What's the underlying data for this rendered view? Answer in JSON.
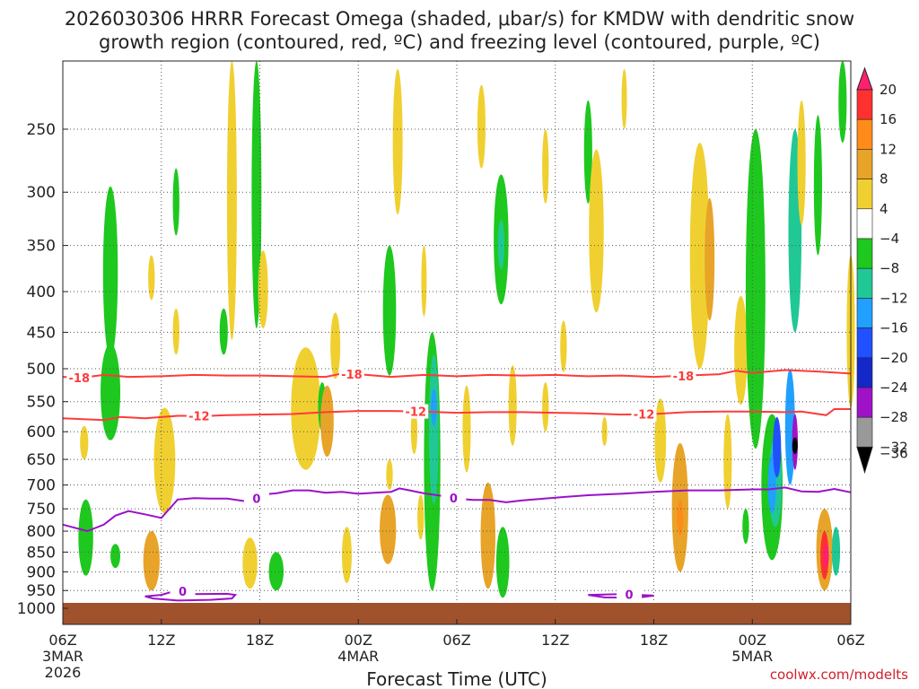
{
  "chart_data": {
    "type": "time-height contour (shaded omega with contour overlays)",
    "title_line1": "2026030306 HRRR Forecast Omega (shaded, μbar/s) for KMDW with dendritic snow",
    "title_line2": "growth region (contoured, red, ºC) and freezing level (contoured, purple, ºC)",
    "xlabel": "Forecast Time (UTC)",
    "credit": "coolwx.com/modelts",
    "x_ticks": [
      {
        "hour": 0,
        "label": "06Z",
        "sub1": "3MAR",
        "sub2": "2026"
      },
      {
        "hour": 6,
        "label": "12Z",
        "sub1": "",
        "sub2": ""
      },
      {
        "hour": 12,
        "label": "18Z",
        "sub1": "",
        "sub2": ""
      },
      {
        "hour": 18,
        "label": "00Z",
        "sub1": "4MAR",
        "sub2": ""
      },
      {
        "hour": 24,
        "label": "06Z",
        "sub1": "",
        "sub2": ""
      },
      {
        "hour": 30,
        "label": "12Z",
        "sub1": "",
        "sub2": ""
      },
      {
        "hour": 36,
        "label": "18Z",
        "sub1": "",
        "sub2": ""
      },
      {
        "hour": 42,
        "label": "00Z",
        "sub1": "5MAR",
        "sub2": ""
      },
      {
        "hour": 48,
        "label": "06Z",
        "sub1": "",
        "sub2": ""
      }
    ],
    "x_range_hours": [
      0,
      48
    ],
    "y_axis": "pressure (hPa)",
    "y_range_hpa": [
      1000,
      200
    ],
    "y_ticks": [
      250,
      300,
      350,
      400,
      450,
      500,
      550,
      600,
      650,
      700,
      750,
      800,
      850,
      900,
      950,
      1000
    ],
    "grid": true,
    "colorbar": {
      "labels": [
        "20",
        "16",
        "12",
        "8",
        "4",
        "−4",
        "−8",
        "−12",
        "−16",
        "−20",
        "−24",
        "−28",
        "−32",
        "−36"
      ],
      "colors": [
        "#ff2070",
        "#ff3030",
        "#ff8c1a",
        "#e8a428",
        "#f0d030",
        "#ffffff",
        "#1ec81e",
        "#20c896",
        "#20a0ff",
        "#2050ff",
        "#1428c8",
        "#a012c8",
        "#999999",
        "#000000"
      ]
    },
    "contours": [
      {
        "name": "dgz-minus-18",
        "label": "-18",
        "color": "#ff3a3a",
        "points": [
          [
            0,
            512
          ],
          [
            1.2,
            513
          ],
          [
            2.5,
            509
          ],
          [
            4,
            512
          ],
          [
            6,
            511
          ],
          [
            8,
            509
          ],
          [
            10,
            510
          ],
          [
            12,
            510
          ],
          [
            14,
            511
          ],
          [
            16,
            512
          ],
          [
            17,
            507
          ],
          [
            18,
            508
          ],
          [
            20,
            512
          ],
          [
            22,
            509
          ],
          [
            24,
            511
          ],
          [
            26,
            509
          ],
          [
            28,
            510
          ],
          [
            30,
            509
          ],
          [
            32,
            511
          ],
          [
            34,
            510
          ],
          [
            36,
            512
          ],
          [
            38,
            510
          ],
          [
            40,
            508
          ],
          [
            41,
            503
          ],
          [
            42,
            506
          ],
          [
            44,
            502
          ],
          [
            46,
            504
          ],
          [
            48,
            507
          ]
        ],
        "label_positions": [
          1,
          17.6,
          37.8
        ]
      },
      {
        "name": "dgz-minus-12",
        "label": "-12",
        "color": "#ff3a3a",
        "points": [
          [
            0,
            577
          ],
          [
            2.5,
            580
          ],
          [
            3.5,
            575
          ],
          [
            5,
            577
          ],
          [
            7,
            573
          ],
          [
            9,
            573
          ],
          [
            10,
            572
          ],
          [
            12,
            571
          ],
          [
            14,
            570
          ],
          [
            16,
            567
          ],
          [
            18,
            565
          ],
          [
            20,
            565
          ],
          [
            22,
            566
          ],
          [
            24,
            568
          ],
          [
            26,
            567
          ],
          [
            28,
            567
          ],
          [
            30,
            568
          ],
          [
            32,
            569
          ],
          [
            34,
            571
          ],
          [
            36,
            570
          ],
          [
            38,
            567
          ],
          [
            40,
            566
          ],
          [
            42,
            566
          ],
          [
            44,
            567
          ],
          [
            45,
            566
          ],
          [
            46.5,
            572
          ],
          [
            47,
            562
          ],
          [
            48,
            562
          ]
        ],
        "label_positions": [
          8.3,
          21.5,
          35.4
        ]
      },
      {
        "name": "freezing-level-0",
        "label": "0",
        "color": "#9b10c8",
        "points": [
          [
            0,
            785
          ],
          [
            1.5,
            800
          ],
          [
            2.5,
            785
          ],
          [
            3.2,
            765
          ],
          [
            4,
            755
          ],
          [
            5,
            762
          ],
          [
            6,
            770
          ],
          [
            7,
            730
          ],
          [
            8,
            727
          ],
          [
            9,
            728
          ],
          [
            10,
            728
          ],
          [
            11,
            733
          ],
          [
            11.6,
            736
          ],
          [
            12,
            720
          ],
          [
            13,
            717
          ],
          [
            14,
            711
          ],
          [
            15,
            711
          ],
          [
            16,
            716
          ],
          [
            17,
            714
          ],
          [
            18,
            718
          ],
          [
            19,
            716
          ],
          [
            20,
            714
          ],
          [
            20.5,
            707
          ],
          [
            21,
            710
          ],
          [
            22,
            717
          ],
          [
            23,
            722
          ],
          [
            24,
            728
          ],
          [
            25,
            731
          ],
          [
            26,
            731
          ],
          [
            27,
            736
          ],
          [
            28,
            732
          ],
          [
            30,
            726
          ],
          [
            32,
            721
          ],
          [
            34,
            718
          ],
          [
            36,
            714
          ],
          [
            38,
            711
          ],
          [
            40,
            711
          ],
          [
            42,
            709
          ],
          [
            43,
            709
          ],
          [
            44,
            705
          ],
          [
            45,
            713
          ],
          [
            46,
            714
          ],
          [
            47,
            708
          ],
          [
            48,
            715
          ]
        ],
        "label_positions": [
          11.8,
          23.8
        ]
      },
      {
        "name": "freezing-loop-1",
        "label": "0",
        "color": "#9b10c8",
        "points": [
          [
            5,
            966
          ],
          [
            6,
            962
          ],
          [
            7,
            949
          ],
          [
            8,
            960
          ],
          [
            10,
            959
          ],
          [
            10.5,
            962
          ],
          [
            10.3,
            972
          ],
          [
            9,
            976
          ],
          [
            7,
            978
          ],
          [
            5.5,
            972
          ],
          [
            5,
            966
          ]
        ],
        "label_positions": [
          7.3
        ]
      },
      {
        "name": "freezing-loop-2",
        "label": "0",
        "color": "#9b10c8",
        "points": [
          [
            32,
            962
          ],
          [
            34,
            960
          ],
          [
            36,
            964
          ],
          [
            35,
            970
          ],
          [
            33,
            969
          ],
          [
            32,
            962
          ]
        ],
        "label_positions": [
          34.5
        ]
      }
    ],
    "omega_cells": [
      {
        "hour": 1.3,
        "p": 620,
        "width": 0.5,
        "depth": 60,
        "value": 4
      },
      {
        "hour": 1.4,
        "p": 820,
        "width": 0.9,
        "depth": 180,
        "value": -8
      },
      {
        "hour": 2.9,
        "p": 540,
        "width": 1.2,
        "depth": 150,
        "value": -8
      },
      {
        "hour": 2.9,
        "p": 390,
        "width": 0.9,
        "depth": 190,
        "value": -8
      },
      {
        "hour": 3.2,
        "p": 860,
        "width": 0.6,
        "depth": 60,
        "value": -8
      },
      {
        "hour": 5.4,
        "p": 875,
        "width": 1.0,
        "depth": 150,
        "value": 8
      },
      {
        "hour": 5.4,
        "p": 385,
        "width": 0.4,
        "depth": 50,
        "value": 4
      },
      {
        "hour": 6.2,
        "p": 660,
        "width": 1.3,
        "depth": 200,
        "value": 4
      },
      {
        "hour": 6.9,
        "p": 310,
        "width": 0.4,
        "depth": 60,
        "value": -8
      },
      {
        "hour": 6.9,
        "p": 450,
        "width": 0.4,
        "depth": 60,
        "value": 4
      },
      {
        "hour": 9.8,
        "p": 450,
        "width": 0.5,
        "depth": 60,
        "value": -8
      },
      {
        "hour": 10.3,
        "p": 330,
        "width": 0.6,
        "depth": 260,
        "value": 4
      },
      {
        "hour": 11.4,
        "p": 880,
        "width": 0.9,
        "depth": 130,
        "value": 4
      },
      {
        "hour": 11.8,
        "p": 320,
        "width": 0.6,
        "depth": 250,
        "value": -8
      },
      {
        "hour": 13,
        "p": 900,
        "width": 0.9,
        "depth": 100,
        "value": -8
      },
      {
        "hour": 12.2,
        "p": 400,
        "width": 0.6,
        "depth": 90,
        "value": 4
      },
      {
        "hour": 14.8,
        "p": 570,
        "width": 1.8,
        "depth": 200,
        "value": 4
      },
      {
        "hour": 15.8,
        "p": 560,
        "width": 0.5,
        "depth": 80,
        "value": -8
      },
      {
        "hour": 16.6,
        "p": 470,
        "width": 0.6,
        "depth": 90,
        "value": 4
      },
      {
        "hour": 16.1,
        "p": 585,
        "width": 0.8,
        "depth": 120,
        "value": 8
      },
      {
        "hour": 17.3,
        "p": 860,
        "width": 0.6,
        "depth": 140,
        "value": 4
      },
      {
        "hour": 19.8,
        "p": 800,
        "width": 1.0,
        "depth": 160,
        "value": 8
      },
      {
        "hour": 19.9,
        "p": 680,
        "width": 0.4,
        "depth": 60,
        "value": 4
      },
      {
        "hour": 19.9,
        "p": 430,
        "width": 0.8,
        "depth": 160,
        "value": -8
      },
      {
        "hour": 20.4,
        "p": 265,
        "width": 0.6,
        "depth": 110,
        "value": 4
      },
      {
        "hour": 22,
        "p": 390,
        "width": 0.3,
        "depth": 80,
        "value": 4
      },
      {
        "hour": 21.8,
        "p": 770,
        "width": 0.4,
        "depth": 100,
        "value": 4
      },
      {
        "hour": 21.4,
        "p": 600,
        "width": 0.4,
        "depth": 80,
        "value": 4
      },
      {
        "hour": 22.5,
        "p": 700,
        "width": 1.0,
        "depth": 500,
        "value": -8
      },
      {
        "hour": 22.6,
        "p": 610,
        "width": 0.6,
        "depth": 260,
        "value": -12
      },
      {
        "hour": 22.6,
        "p": 560,
        "width": 0.35,
        "depth": 60,
        "value": -16
      },
      {
        "hour": 24.6,
        "p": 600,
        "width": 0.5,
        "depth": 150,
        "value": 4
      },
      {
        "hour": 25.5,
        "p": 250,
        "width": 0.5,
        "depth": 60,
        "value": 4
      },
      {
        "hour": 25.9,
        "p": 820,
        "width": 0.9,
        "depth": 250,
        "value": 8
      },
      {
        "hour": 26.7,
        "p": 350,
        "width": 0.9,
        "depth": 130,
        "value": -8
      },
      {
        "hour": 26.7,
        "p": 350,
        "width": 0.4,
        "depth": 50,
        "value": -12
      },
      {
        "hour": 26.8,
        "p": 880,
        "width": 0.8,
        "depth": 180,
        "value": -8
      },
      {
        "hour": 27.4,
        "p": 560,
        "width": 0.5,
        "depth": 130,
        "value": 4
      },
      {
        "hour": 29.4,
        "p": 280,
        "width": 0.4,
        "depth": 60,
        "value": 4
      },
      {
        "hour": 29.4,
        "p": 560,
        "width": 0.4,
        "depth": 80,
        "value": 4
      },
      {
        "hour": 30.5,
        "p": 470,
        "width": 0.4,
        "depth": 70,
        "value": 4
      },
      {
        "hour": 32.0,
        "p": 270,
        "width": 0.5,
        "depth": 80,
        "value": -8
      },
      {
        "hour": 32.5,
        "p": 345,
        "width": 0.9,
        "depth": 160,
        "value": 4
      },
      {
        "hour": 33.0,
        "p": 600,
        "width": 0.3,
        "depth": 50,
        "value": 4
      },
      {
        "hour": 34.2,
        "p": 230,
        "width": 0.3,
        "depth": 40,
        "value": 4
      },
      {
        "hour": 36.4,
        "p": 620,
        "width": 0.7,
        "depth": 150,
        "value": 4
      },
      {
        "hour": 37.6,
        "p": 760,
        "width": 1.0,
        "depth": 280,
        "value": 8
      },
      {
        "hour": 37.6,
        "p": 770,
        "width": 0.4,
        "depth": 80,
        "value": 12
      },
      {
        "hour": 38.8,
        "p": 380,
        "width": 1.2,
        "depth": 240,
        "value": 4
      },
      {
        "hour": 39.4,
        "p": 370,
        "width": 0.6,
        "depth": 130,
        "value": 8
      },
      {
        "hour": 40.5,
        "p": 660,
        "width": 0.5,
        "depth": 180,
        "value": 4
      },
      {
        "hour": 41.3,
        "p": 480,
        "width": 0.8,
        "depth": 150,
        "value": 4
      },
      {
        "hour": 41.6,
        "p": 790,
        "width": 0.4,
        "depth": 80,
        "value": -8
      },
      {
        "hour": 42.2,
        "p": 440,
        "width": 1.2,
        "depth": 380,
        "value": -8
      },
      {
        "hour": 43.2,
        "p": 720,
        "width": 1.3,
        "depth": 300,
        "value": -8
      },
      {
        "hour": 43.4,
        "p": 700,
        "width": 0.8,
        "depth": 180,
        "value": -12
      },
      {
        "hour": 43.2,
        "p": 700,
        "width": 0.5,
        "depth": 120,
        "value": -16
      },
      {
        "hour": 43.5,
        "p": 630,
        "width": 0.5,
        "depth": 110,
        "value": -20
      },
      {
        "hour": 44.3,
        "p": 600,
        "width": 0.6,
        "depth": 200,
        "value": -16
      },
      {
        "hour": 44.6,
        "p": 620,
        "width": 0.35,
        "depth": 100,
        "value": -28
      },
      {
        "hour": 44.6,
        "p": 625,
        "width": 0.15,
        "depth": 30,
        "value": -36
      },
      {
        "hour": 44.6,
        "p": 350,
        "width": 0.8,
        "depth": 200,
        "value": -12
      },
      {
        "hour": 45.0,
        "p": 280,
        "width": 0.5,
        "depth": 100,
        "value": 4
      },
      {
        "hour": 46.4,
        "p": 850,
        "width": 1.0,
        "depth": 200,
        "value": 8
      },
      {
        "hour": 46.4,
        "p": 860,
        "width": 0.5,
        "depth": 120,
        "value": 16
      },
      {
        "hour": 46.5,
        "p": 860,
        "width": 0.25,
        "depth": 60,
        "value": 20
      },
      {
        "hour": 47.1,
        "p": 850,
        "width": 0.5,
        "depth": 120,
        "value": -12
      },
      {
        "hour": 47.5,
        "p": 200,
        "width": 0.5,
        "depth": 120,
        "value": -8
      },
      {
        "hour": 48.0,
        "p": 460,
        "width": 0.5,
        "depth": 200,
        "value": 4
      },
      {
        "hour": 46.0,
        "p": 300,
        "width": 0.5,
        "depth": 120,
        "value": -8
      }
    ]
  }
}
